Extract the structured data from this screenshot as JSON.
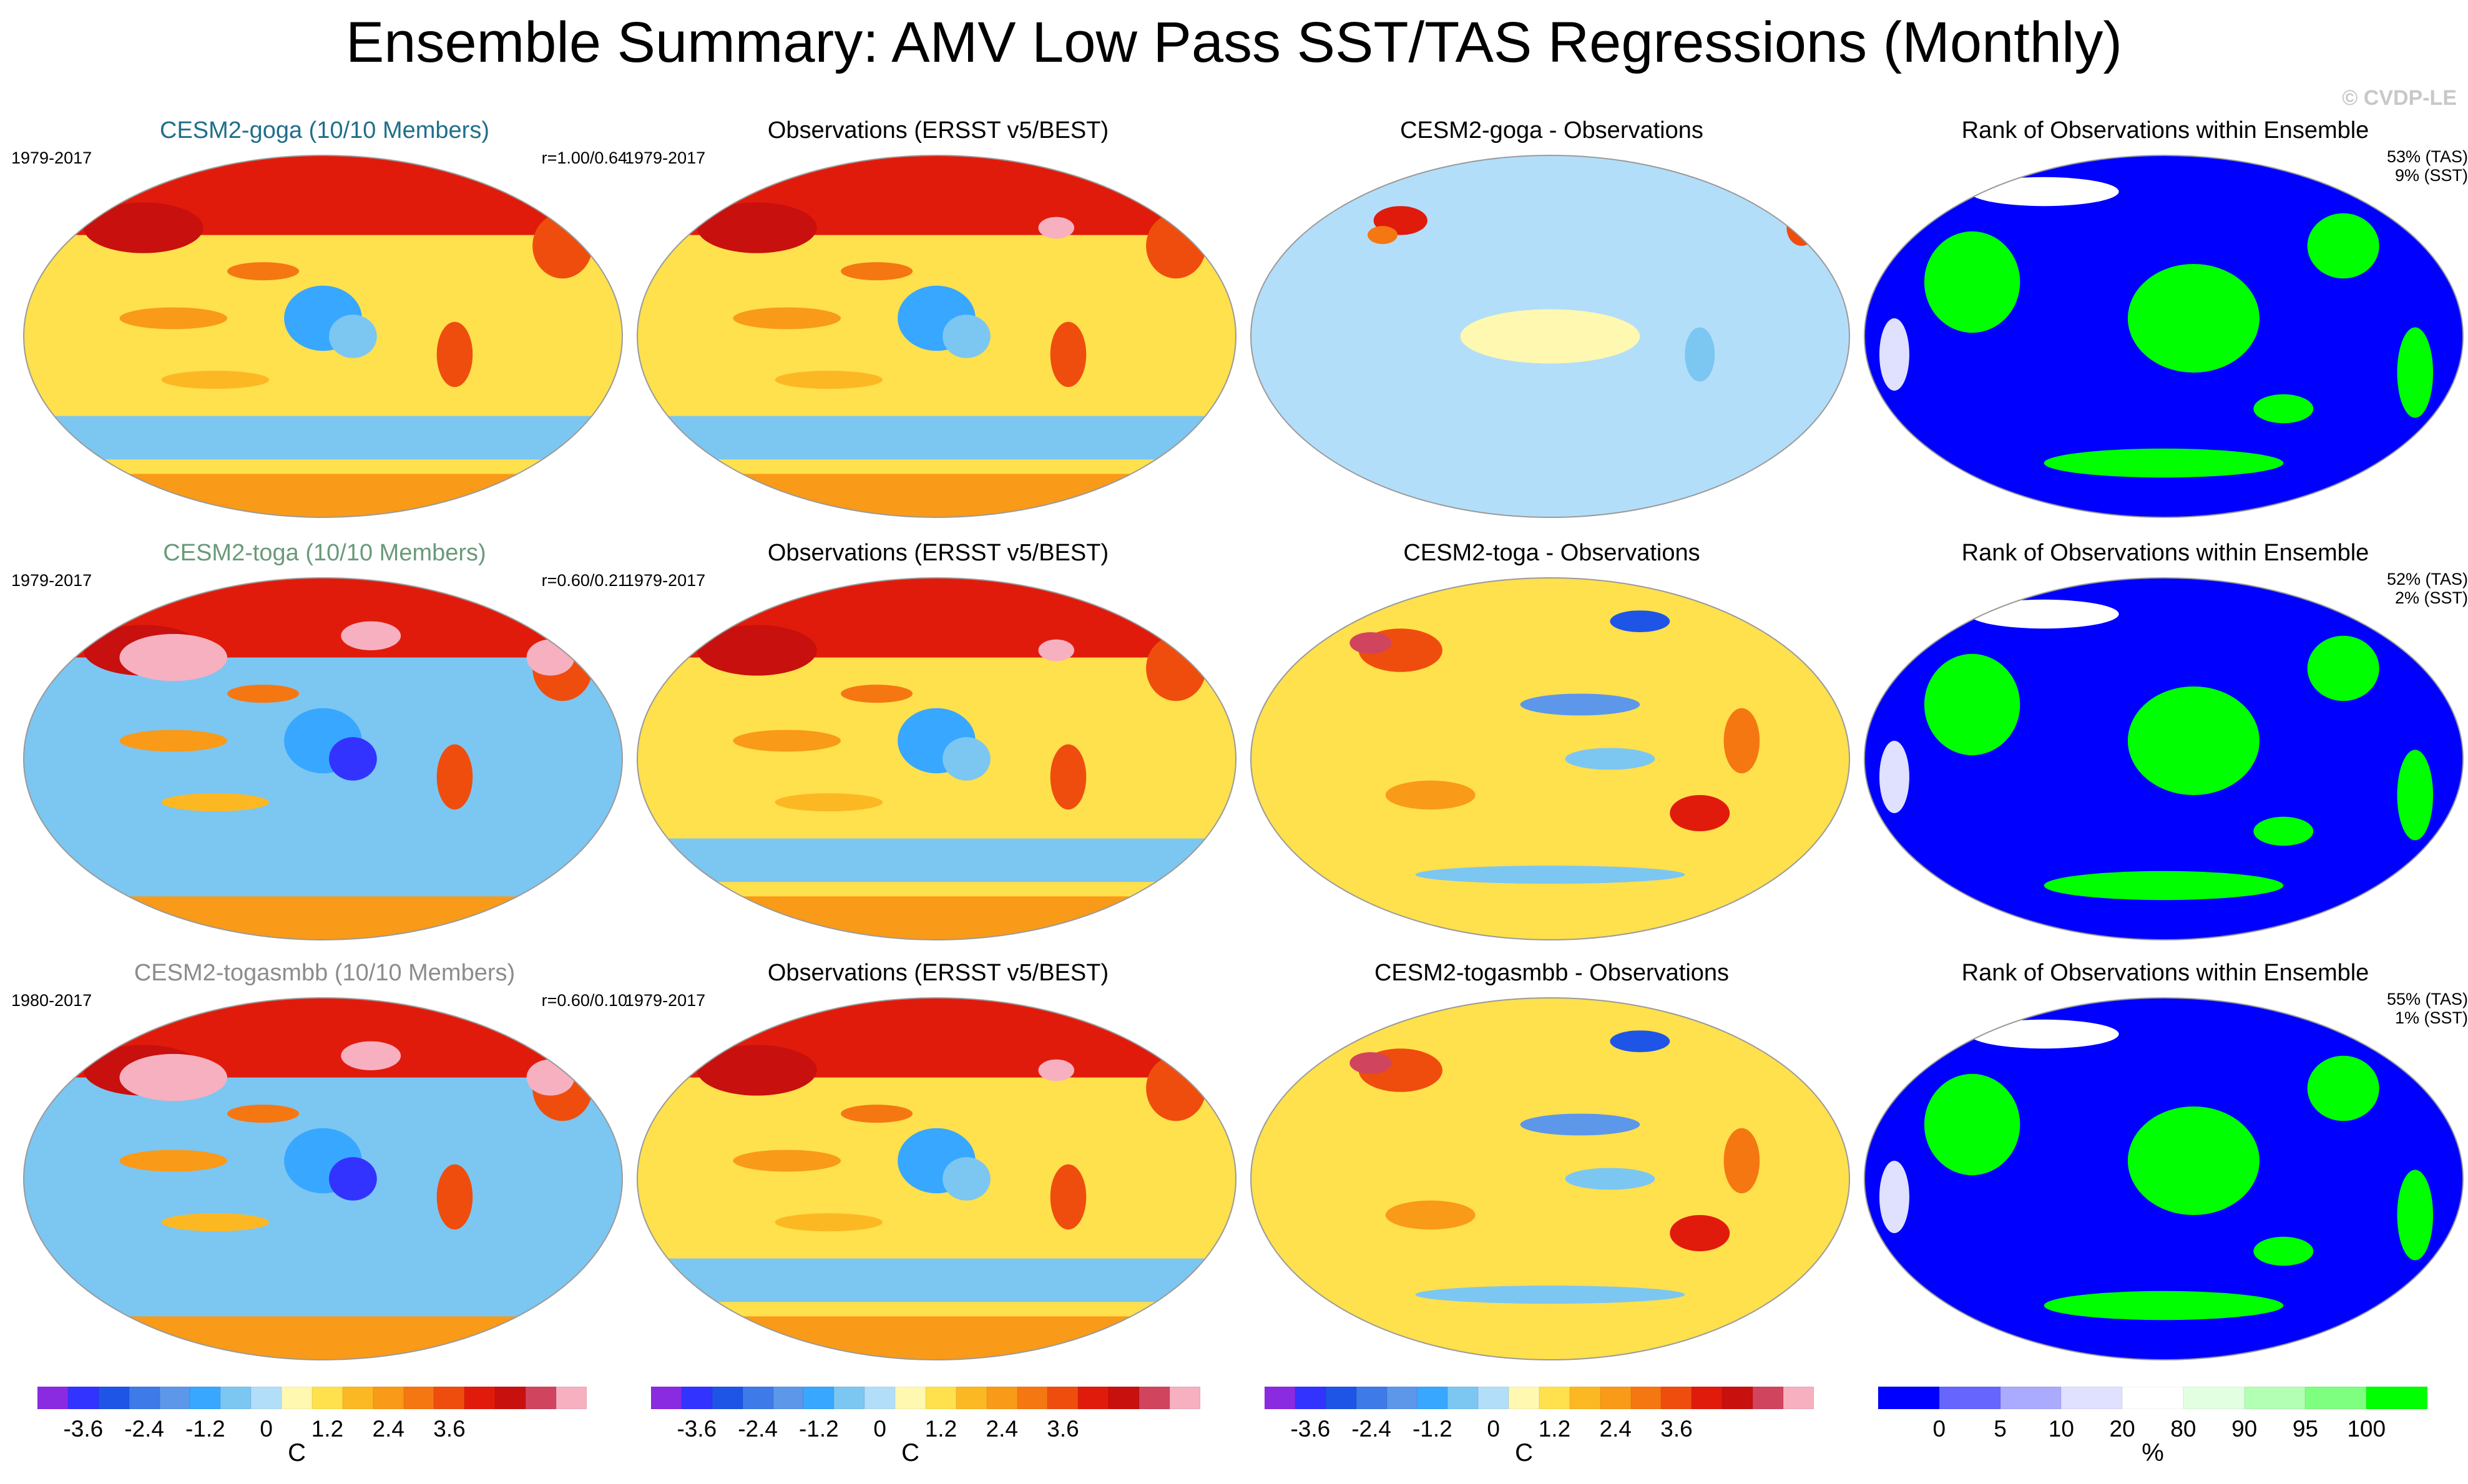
{
  "title": "Ensemble Summary: AMV Low Pass SST/TAS Regressions (Monthly)",
  "credit": "© CVDP-LE",
  "palette": {
    "diverging": [
      "#8a2be2",
      "#3333ff",
      "#1e55e6",
      "#3e7ae8",
      "#5c97ea",
      "#38a7ff",
      "#7cc6f2",
      "#b3defa",
      "#fff8b0",
      "#ffe04d",
      "#fcb823",
      "#f99a18",
      "#f57712",
      "#ef4d0e",
      "#e11b0b",
      "#c8100e",
      "#d0445e",
      "#f6b0c0"
    ],
    "rank": [
      "#0000ff",
      "#6666ff",
      "#aaaaff",
      "#e0e0ff",
      "#ffffff",
      "#e2ffe2",
      "#b3ffb3",
      "#7fff7f",
      "#00ff00"
    ],
    "ocean": "#7cc6f2",
    "land_tint": "#f6b0c0",
    "coast": "#ffffff"
  },
  "rows": [
    {
      "ens": {
        "label": "CESM2-goga (10/10 Members)",
        "color": "#1f6f8b",
        "years": "1979-2017",
        "corr": "r=1.00/0.64"
      },
      "obs": {
        "label": "Observations (ERSST v5/BEST)",
        "years": "1979-2017"
      },
      "diff": {
        "label": "CESM2-goga - Observations"
      },
      "rank": {
        "label": "Rank of Observations within Ensemble",
        "tas": "53% (TAS)",
        "sst": "9% (SST)"
      }
    },
    {
      "ens": {
        "label": "CESM2-toga (10/10 Members)",
        "color": "#6a9a7a",
        "years": "1979-2017",
        "corr": "r=0.60/0.21"
      },
      "obs": {
        "label": "Observations (ERSST v5/BEST)",
        "years": "1979-2017"
      },
      "diff": {
        "label": "CESM2-toga - Observations"
      },
      "rank": {
        "label": "Rank of Observations within Ensemble",
        "tas": "52% (TAS)",
        "sst": "2% (SST)"
      }
    },
    {
      "ens": {
        "label": "CESM2-togasmbb (10/10 Members)",
        "color": "#8c8c8c",
        "years": "1980-2017",
        "corr": "r=0.60/0.10"
      },
      "obs": {
        "label": "Observations (ERSST v5/BEST)",
        "years": "1979-2017"
      },
      "diff": {
        "label": "CESM2-togasmbb - Observations"
      },
      "rank": {
        "label": "Rank of Observations within Ensemble",
        "tas": "55% (TAS)",
        "sst": "1% (SST)"
      }
    }
  ],
  "colorbars": {
    "temp": {
      "ticks": [
        "-3.6",
        "-2.4",
        "-1.2",
        "0",
        "1.2",
        "2.4",
        "3.6"
      ],
      "unit": "C"
    },
    "rank": {
      "ticks": [
        "0",
        "5",
        "10",
        "20",
        "80",
        "90",
        "95",
        "100"
      ],
      "unit": "%"
    }
  }
}
